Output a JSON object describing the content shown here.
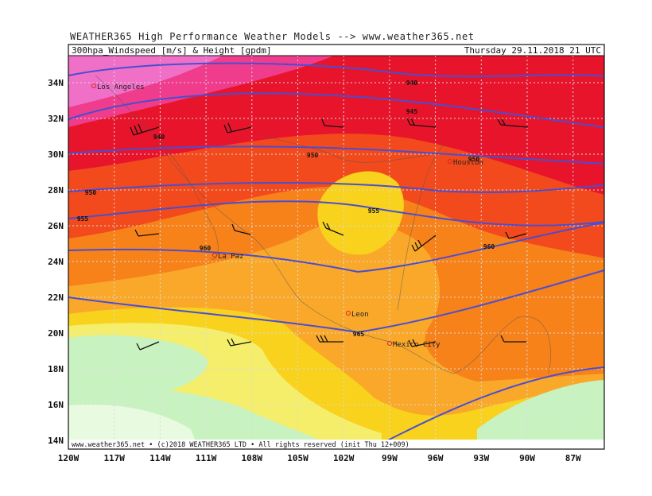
{
  "header": {
    "title": "WEATHER365 High Performance Weather Models --> www.weather365.net",
    "subtitle": "300hpa_Windspeed [m/s] & Height [gpdm]",
    "valid_time": "Thursday 29.11.2018 21 UTC"
  },
  "map": {
    "latitude_labels": [
      "34N",
      "32N",
      "30N",
      "28N",
      "26N",
      "24N",
      "22N",
      "20N",
      "18N",
      "16N",
      "14N"
    ],
    "longitude_labels": [
      "120W",
      "117W",
      "114W",
      "111W",
      "108W",
      "105W",
      "102W",
      "99W",
      "96W",
      "93W",
      "90W",
      "87W"
    ],
    "cities": [
      "Los Angeles",
      "Houston",
      "La Paz",
      "Leon",
      "Mexico City"
    ],
    "contour_labels": [
      "940",
      "945",
      "940",
      "950",
      "950",
      "950",
      "955",
      "955",
      "960",
      "960",
      "965"
    ]
  },
  "footer": "www.weather365.net • (c)2018 WEATHER365 LTD • All rights reserved (init Thu 12+009)"
}
